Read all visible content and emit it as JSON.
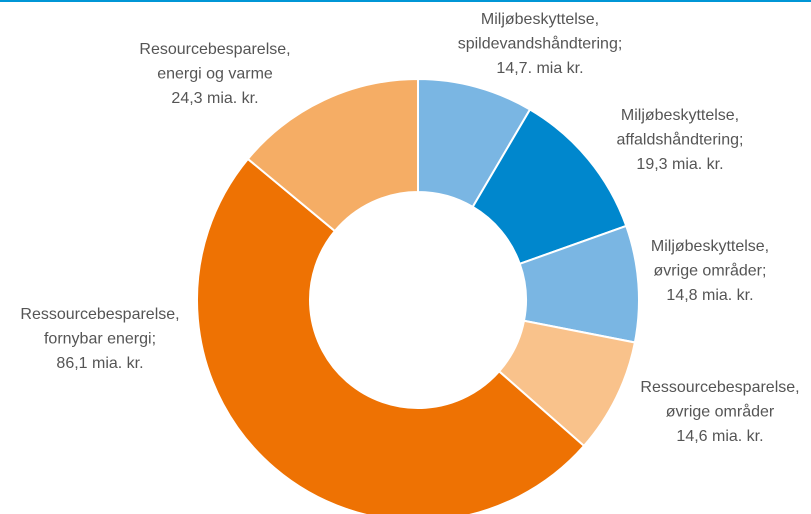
{
  "chart_data": {
    "type": "donut",
    "categories": [
      [
        "Miljøbeskyttelse,",
        "spildevandshåndtering;"
      ],
      [
        "Miljøbeskyttelse,",
        "affaldshåndtering;"
      ],
      [
        "Miljøbeskyttelse,",
        "øvrige områder;"
      ],
      [
        "Ressourcebesparelse,",
        "øvrige områder"
      ],
      [
        "Ressourcebesparelse,",
        "fornybar energi;"
      ],
      [
        "Resourcebesparelse,",
        "energi og varme"
      ]
    ],
    "values": [
      14.7,
      19.3,
      14.8,
      14.6,
      86.1,
      24.3
    ],
    "value_labels": [
      "14,7. mia kr.",
      "19,3 mia. kr.",
      "14,8 mia. kr.",
      "14,6 mia. kr.",
      "86,1 mia. kr.",
      "24,3 mia. kr."
    ],
    "colors": [
      "#7ab6e3",
      "#0087cd",
      "#7ab6e3",
      "#f9c28b",
      "#ee7203",
      "#f5ad65"
    ]
  }
}
